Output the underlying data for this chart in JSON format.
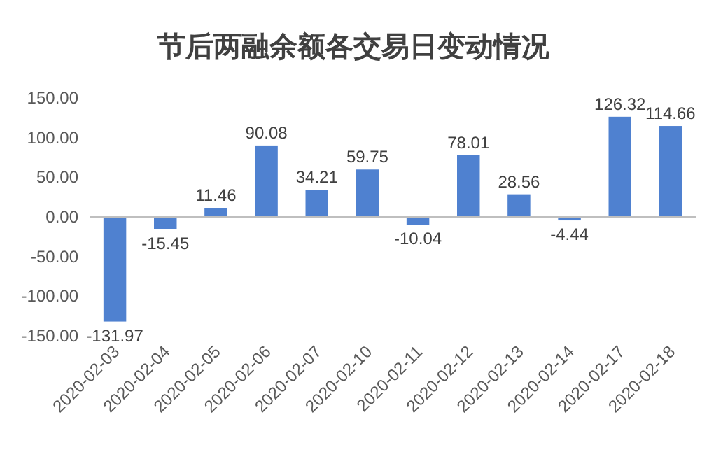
{
  "chart_data": {
    "type": "bar",
    "title": "节后两融余额各交易日变动情况",
    "categories": [
      "2020-02-03",
      "2020-02-04",
      "2020-02-05",
      "2020-02-06",
      "2020-02-07",
      "2020-02-10",
      "2020-02-11",
      "2020-02-12",
      "2020-02-13",
      "2020-02-14",
      "2020-02-17",
      "2020-02-18"
    ],
    "values": [
      -131.97,
      -15.45,
      11.46,
      90.08,
      34.21,
      59.75,
      -10.04,
      78.01,
      28.56,
      -4.44,
      126.32,
      114.66
    ],
    "color": "#4f81d0",
    "ylim": [
      -150,
      150
    ],
    "yticks": [
      {
        "value": -150,
        "label": "-150.00"
      },
      {
        "value": -100,
        "label": "-100.00"
      },
      {
        "value": -50,
        "label": "-50.00"
      },
      {
        "value": 0,
        "label": "0.00"
      },
      {
        "value": 50,
        "label": "50.00"
      },
      {
        "value": 100,
        "label": "100.00"
      },
      {
        "value": 150,
        "label": "150.00"
      }
    ],
    "data_labels": true
  }
}
